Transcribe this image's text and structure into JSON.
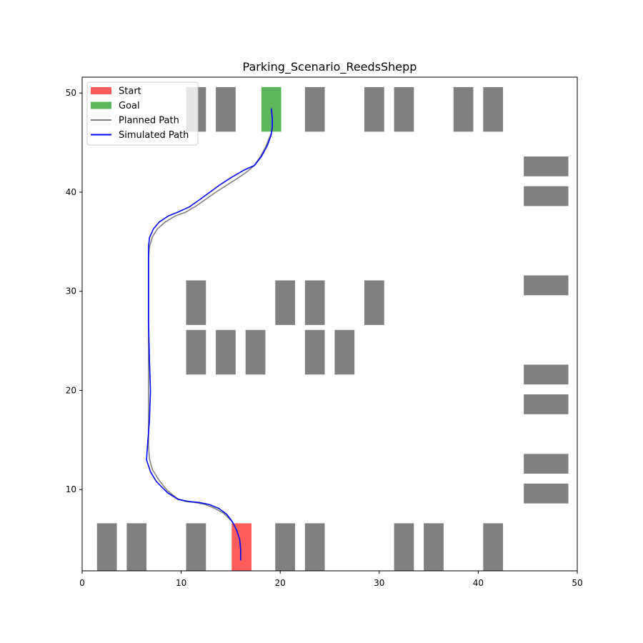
{
  "chart_data": {
    "type": "scatter",
    "title": "Parking_Scenario_ReedsShepp",
    "xlabel": "",
    "ylabel": "",
    "xlim": [
      0,
      50
    ],
    "ylim": [
      1.8,
      51.6
    ],
    "xticks": [
      0,
      10,
      20,
      30,
      40,
      50
    ],
    "yticks": [
      10,
      20,
      30,
      40,
      50
    ],
    "grid": false,
    "legend_position": "upper-left",
    "colors": {
      "start": "#ff3333",
      "goal": "#33a333",
      "obstacle": "#808080",
      "planned": "#808080",
      "simulated": "#0000ff"
    },
    "legend": [
      {
        "label": "Start",
        "kind": "patch",
        "color": "#ff3333"
      },
      {
        "label": "Goal",
        "kind": "patch",
        "color": "#33a333"
      },
      {
        "label": "Planned Path",
        "kind": "line",
        "color": "#808080"
      },
      {
        "label": "Simulated Path",
        "kind": "line",
        "color": "#0000ff"
      }
    ],
    "start": {
      "x0": 15.1,
      "x1": 17.1,
      "y0": 1.8,
      "y1": 6.6
    },
    "goal": {
      "x0": 18.1,
      "x1": 20.1,
      "y0": 46.1,
      "y1": 50.6
    },
    "obstacles": [
      {
        "x0": 10.5,
        "x1": 12.5,
        "y0": 46.1,
        "y1": 50.6
      },
      {
        "x0": 13.5,
        "x1": 15.5,
        "y0": 46.1,
        "y1": 50.6
      },
      {
        "x0": 22.5,
        "x1": 24.5,
        "y0": 46.1,
        "y1": 50.6
      },
      {
        "x0": 28.5,
        "x1": 30.5,
        "y0": 46.1,
        "y1": 50.6
      },
      {
        "x0": 31.5,
        "x1": 33.5,
        "y0": 46.1,
        "y1": 50.6
      },
      {
        "x0": 37.5,
        "x1": 39.5,
        "y0": 46.1,
        "y1": 50.6
      },
      {
        "x0": 40.5,
        "x1": 42.5,
        "y0": 46.1,
        "y1": 50.6
      },
      {
        "x0": 44.6,
        "x1": 49.1,
        "y0": 41.6,
        "y1": 43.6
      },
      {
        "x0": 44.6,
        "x1": 49.1,
        "y0": 38.6,
        "y1": 40.6
      },
      {
        "x0": 44.6,
        "x1": 49.1,
        "y0": 29.6,
        "y1": 31.6
      },
      {
        "x0": 44.6,
        "x1": 49.1,
        "y0": 20.6,
        "y1": 22.6
      },
      {
        "x0": 44.6,
        "x1": 49.1,
        "y0": 17.6,
        "y1": 19.6
      },
      {
        "x0": 44.6,
        "x1": 49.1,
        "y0": 11.6,
        "y1": 13.6
      },
      {
        "x0": 44.6,
        "x1": 49.1,
        "y0": 8.6,
        "y1": 10.6
      },
      {
        "x0": 10.5,
        "x1": 12.5,
        "y0": 26.6,
        "y1": 31.1
      },
      {
        "x0": 19.5,
        "x1": 21.5,
        "y0": 26.6,
        "y1": 31.1
      },
      {
        "x0": 22.5,
        "x1": 24.5,
        "y0": 26.6,
        "y1": 31.1
      },
      {
        "x0": 28.5,
        "x1": 30.5,
        "y0": 26.6,
        "y1": 31.1
      },
      {
        "x0": 10.5,
        "x1": 12.5,
        "y0": 21.6,
        "y1": 26.1
      },
      {
        "x0": 13.5,
        "x1": 15.5,
        "y0": 21.6,
        "y1": 26.1
      },
      {
        "x0": 16.5,
        "x1": 18.5,
        "y0": 21.6,
        "y1": 26.1
      },
      {
        "x0": 22.5,
        "x1": 24.5,
        "y0": 21.6,
        "y1": 26.1
      },
      {
        "x0": 25.5,
        "x1": 27.5,
        "y0": 21.6,
        "y1": 26.1
      },
      {
        "x0": 1.5,
        "x1": 3.5,
        "y0": 1.8,
        "y1": 6.6
      },
      {
        "x0": 4.5,
        "x1": 6.5,
        "y0": 1.8,
        "y1": 6.6
      },
      {
        "x0": 10.5,
        "x1": 12.5,
        "y0": 1.8,
        "y1": 6.6
      },
      {
        "x0": 19.5,
        "x1": 21.5,
        "y0": 1.8,
        "y1": 6.6
      },
      {
        "x0": 22.5,
        "x1": 24.5,
        "y0": 1.8,
        "y1": 6.6
      },
      {
        "x0": 31.5,
        "x1": 33.5,
        "y0": 1.8,
        "y1": 6.6
      },
      {
        "x0": 34.5,
        "x1": 36.5,
        "y0": 1.8,
        "y1": 6.6
      },
      {
        "x0": 40.5,
        "x1": 42.5,
        "y0": 1.8,
        "y1": 6.6
      }
    ],
    "series": [
      {
        "name": "Planned Path",
        "x": [
          16.0,
          16.0,
          15.9,
          15.6,
          15.1,
          14.3,
          13.4,
          12.4,
          11.4,
          10.4,
          9.6,
          8.6,
          7.8,
          7.1,
          6.8,
          6.7,
          6.7,
          6.7,
          6.7,
          6.7,
          6.7,
          6.7,
          6.8,
          7.1,
          7.6,
          8.4,
          9.4,
          10.5,
          11.5,
          12.5,
          13.5,
          14.6,
          15.7,
          16.7,
          17.4,
          18.0,
          18.5,
          18.9,
          19.2,
          19.2,
          19.2
        ],
        "y": [
          3.0,
          4.0,
          5.0,
          6.0,
          6.8,
          7.6,
          8.1,
          8.5,
          8.7,
          8.8,
          9.1,
          9.9,
          10.9,
          12.0,
          13.1,
          14.5,
          17.0,
          20.0,
          23.0,
          27.0,
          30.0,
          33.3,
          34.5,
          35.5,
          36.3,
          37.0,
          37.6,
          38.0,
          38.6,
          39.3,
          40.0,
          40.7,
          41.4,
          42.1,
          42.7,
          43.6,
          44.5,
          45.5,
          46.2,
          47.2,
          48.2
        ]
      },
      {
        "name": "Simulated Path",
        "x": [
          16.0,
          16.0,
          15.9,
          15.6,
          15.2,
          14.6,
          13.8,
          12.8,
          11.8,
          10.8,
          9.7,
          8.6,
          7.5,
          6.9,
          6.5,
          6.6,
          6.8,
          6.9,
          6.8,
          6.7,
          6.7,
          6.7,
          6.7,
          6.8,
          7.2,
          7.8,
          8.7,
          9.7,
          10.8,
          11.8,
          12.9,
          14.0,
          15.1,
          16.3,
          17.4,
          18.1,
          18.7,
          19.1,
          19.2,
          19.2,
          19.1
        ],
        "y": [
          2.9,
          4.0,
          5.0,
          5.9,
          6.7,
          7.5,
          8.1,
          8.5,
          8.7,
          8.8,
          9.0,
          9.7,
          10.8,
          11.8,
          13.0,
          14.5,
          17.0,
          20.0,
          23.0,
          27.0,
          30.0,
          33.5,
          34.5,
          35.4,
          36.3,
          37.0,
          37.6,
          38.0,
          38.5,
          39.2,
          40.0,
          40.8,
          41.5,
          42.2,
          42.7,
          43.6,
          44.7,
          45.8,
          46.6,
          47.5,
          48.4
        ]
      }
    ]
  }
}
